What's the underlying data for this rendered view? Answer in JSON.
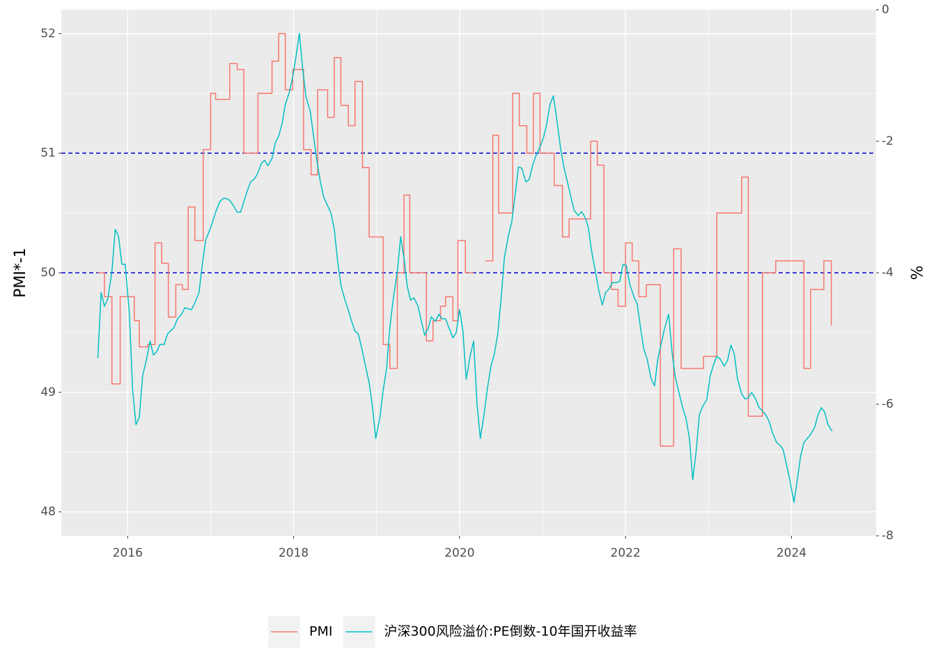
{
  "chart_data": {
    "type": "line",
    "y_label": "PMI*-1",
    "y2_label": "%",
    "xlim": [
      2015.2,
      2025.02
    ],
    "xticks": [
      2016,
      2018,
      2020,
      2022,
      2024
    ],
    "xminor": [
      2017,
      2019,
      2021,
      2023
    ],
    "ylim": [
      47.8,
      52.2
    ],
    "yticks": [
      48,
      49,
      50,
      51,
      52
    ],
    "yminor": [
      48.5,
      49.5,
      50.5,
      51.5
    ],
    "y2lim": [
      -8,
      0
    ],
    "y2ticks": [
      0,
      -2,
      -4,
      -6,
      -8
    ],
    "grid": true,
    "legend": "bottom",
    "reference_lines": [
      51,
      50
    ],
    "reference_color": "#0000cd",
    "series": [
      {
        "name": "PMI",
        "color": "#f8766d",
        "step": "hv",
        "x": [
          2015.64,
          2015.72,
          2015.81,
          2015.91,
          2016.08,
          2016.14,
          2016.24,
          2016.33,
          2016.41,
          2016.49,
          2016.58,
          2016.66,
          2016.73,
          2016.81,
          2016.91,
          2017.0,
          2017.06,
          2017.23,
          2017.32,
          2017.4,
          2017.57,
          2017.74,
          2017.82,
          2017.9,
          2017.99,
          2018.12,
          2018.21,
          2018.29,
          2018.41,
          2018.49,
          2018.57,
          2018.66,
          2018.74,
          2018.83,
          2018.91,
          2019.08,
          2019.16,
          2019.25,
          2019.33,
          2019.4,
          2019.6,
          2019.68,
          2019.77,
          2019.83,
          2019.92,
          2019.98,
          2020.07,
          2020.17,
          2020.31,
          2020.4,
          2020.47,
          2020.64,
          2020.72,
          2020.81,
          2020.89,
          2020.97,
          2021.14,
          2021.24,
          2021.32,
          2021.58,
          2021.66,
          2021.74,
          2021.83,
          2021.91,
          2022.0,
          2022.08,
          2022.16,
          2022.25,
          2022.42,
          2022.58,
          2022.67,
          2022.94,
          2023.1,
          2023.4,
          2023.48,
          2023.65,
          2023.81,
          2024.15,
          2024.23,
          2024.39,
          2024.48
        ],
        "values": [
          50.0,
          49.8,
          49.07,
          49.8,
          49.6,
          49.38,
          49.4,
          50.25,
          50.08,
          49.63,
          49.9,
          49.86,
          50.55,
          50.27,
          51.03,
          51.5,
          51.45,
          51.75,
          51.7,
          51.0,
          51.5,
          51.77,
          52.0,
          51.53,
          51.7,
          51.03,
          50.82,
          51.53,
          51.3,
          51.8,
          51.4,
          51.23,
          51.6,
          50.88,
          50.3,
          49.4,
          49.2,
          50.0,
          50.65,
          50.0,
          49.43,
          49.6,
          49.72,
          49.8,
          49.6,
          50.27,
          50.0,
          null,
          50.1,
          51.15,
          50.5,
          51.5,
          51.23,
          51.0,
          51.5,
          51.0,
          50.73,
          50.3,
          50.45,
          51.1,
          50.9,
          50.0,
          49.86,
          49.72,
          50.25,
          50.1,
          49.8,
          49.9,
          48.55,
          50.2,
          49.2,
          49.3,
          50.5,
          50.8,
          48.8,
          50.0,
          50.1,
          49.2,
          49.86,
          50.1,
          49.56
        ]
      },
      {
        "name": "沪深300风险溢价:PE倒数-10年国开收益率",
        "color": "#00bfc4",
        "axis": "y2",
        "x": [
          2015.64,
          2015.68,
          2015.72,
          2015.76,
          2015.81,
          2015.85,
          2015.89,
          2015.93,
          2015.97,
          2016.02,
          2016.06,
          2016.1,
          2016.14,
          2016.18,
          2016.23,
          2016.27,
          2016.31,
          2016.35,
          2016.39,
          2016.44,
          2016.48,
          2016.52,
          2016.56,
          2016.6,
          2016.65,
          2016.69,
          2016.73,
          2016.77,
          2016.81,
          2016.86,
          2016.9,
          2016.94,
          2016.98,
          2017.02,
          2017.06,
          2017.11,
          2017.15,
          2017.19,
          2017.23,
          2017.27,
          2017.32,
          2017.36,
          2017.4,
          2017.44,
          2017.48,
          2017.53,
          2017.57,
          2017.61,
          2017.65,
          2017.69,
          2017.74,
          2017.78,
          2017.82,
          2017.86,
          2017.9,
          2017.95,
          2017.99,
          2018.03,
          2018.07,
          2018.11,
          2018.15,
          2018.2,
          2018.24,
          2018.28,
          2018.32,
          2018.36,
          2018.41,
          2018.45,
          2018.49,
          2018.53,
          2018.57,
          2018.62,
          2018.66,
          2018.7,
          2018.74,
          2018.78,
          2018.83,
          2018.87,
          2018.91,
          2018.95,
          2018.99,
          2019.04,
          2019.08,
          2019.12,
          2019.16,
          2019.2,
          2019.25,
          2019.29,
          2019.33,
          2019.37,
          2019.41,
          2019.45,
          2019.5,
          2019.54,
          2019.58,
          2019.62,
          2019.66,
          2019.71,
          2019.75,
          2019.79,
          2019.83,
          2019.87,
          2019.92,
          2019.96,
          2020.0,
          2020.04,
          2020.08,
          2020.13,
          2020.17,
          2020.21,
          2020.25,
          2020.29,
          2020.34,
          2020.38,
          2020.42,
          2020.46,
          2020.5,
          2020.54,
          2020.59,
          2020.63,
          2020.67,
          2020.71,
          2020.75,
          2020.8,
          2020.84,
          2020.88,
          2020.92,
          2020.96,
          2021.01,
          2021.05,
          2021.09,
          2021.13,
          2021.17,
          2021.22,
          2021.26,
          2021.3,
          2021.34,
          2021.38,
          2021.43,
          2021.47,
          2021.51,
          2021.55,
          2021.59,
          2021.64,
          2021.68,
          2021.72,
          2021.76,
          2021.8,
          2021.84,
          2021.89,
          2021.93,
          2021.97,
          2022.01,
          2022.05,
          2022.1,
          2022.14,
          2022.18,
          2022.22,
          2022.26,
          2022.31,
          2022.35,
          2022.39,
          2022.43,
          2022.47,
          2022.52,
          2022.56,
          2022.6,
          2022.64,
          2022.68,
          2022.73,
          2022.77,
          2022.81,
          2022.85,
          2022.89,
          2022.93,
          2022.98,
          2023.02,
          2023.06,
          2023.1,
          2023.14,
          2023.19,
          2023.23,
          2023.27,
          2023.31,
          2023.35,
          2023.4,
          2023.44,
          2023.48,
          2023.52,
          2023.56,
          2023.61,
          2023.65,
          2023.69,
          2023.73,
          2023.77,
          2023.82,
          2023.86,
          2023.9,
          2023.94,
          2023.98,
          2024.03,
          2024.07,
          2024.11,
          2024.15,
          2024.19,
          2024.23,
          2024.28,
          2024.32,
          2024.36,
          2024.4,
          2024.44,
          2024.49
        ],
        "values": [
          -5.3,
          -4.3,
          -4.51,
          -4.4,
          -3.98,
          -3.34,
          -3.45,
          -3.87,
          -3.87,
          -4.61,
          -5.78,
          -6.31,
          -6.2,
          -5.57,
          -5.3,
          -5.04,
          -5.25,
          -5.2,
          -5.09,
          -5.09,
          -4.93,
          -4.88,
          -4.83,
          -4.7,
          -4.63,
          -4.53,
          -4.55,
          -4.56,
          -4.46,
          -4.3,
          -3.87,
          -3.5,
          -3.38,
          -3.24,
          -3.08,
          -2.92,
          -2.87,
          -2.87,
          -2.9,
          -2.97,
          -3.08,
          -3.08,
          -2.92,
          -2.76,
          -2.62,
          -2.57,
          -2.48,
          -2.34,
          -2.29,
          -2.37,
          -2.26,
          -2.02,
          -1.92,
          -1.74,
          -1.44,
          -1.25,
          -1.02,
          -0.7,
          -0.36,
          -0.91,
          -1.33,
          -1.54,
          -1.92,
          -2.29,
          -2.6,
          -2.84,
          -2.98,
          -3.09,
          -3.34,
          -3.82,
          -4.19,
          -4.42,
          -4.57,
          -4.74,
          -4.89,
          -4.93,
          -5.2,
          -5.44,
          -5.67,
          -6.04,
          -6.52,
          -6.2,
          -5.78,
          -5.46,
          -4.83,
          -4.4,
          -3.98,
          -3.45,
          -3.77,
          -4.21,
          -4.42,
          -4.38,
          -4.51,
          -4.74,
          -4.95,
          -4.85,
          -4.67,
          -4.74,
          -4.63,
          -4.7,
          -4.7,
          -4.83,
          -4.99,
          -4.91,
          -4.56,
          -4.88,
          -5.62,
          -5.25,
          -5.04,
          -5.99,
          -6.52,
          -6.2,
          -5.72,
          -5.41,
          -5.23,
          -4.93,
          -4.4,
          -3.77,
          -3.43,
          -3.22,
          -2.81,
          -2.39,
          -2.41,
          -2.62,
          -2.58,
          -2.37,
          -2.22,
          -2.12,
          -1.95,
          -1.74,
          -1.44,
          -1.31,
          -1.65,
          -2.13,
          -2.41,
          -2.62,
          -2.84,
          -3.05,
          -3.13,
          -3.07,
          -3.15,
          -3.3,
          -3.66,
          -4.0,
          -4.28,
          -4.49,
          -4.3,
          -4.25,
          -4.15,
          -4.15,
          -4.13,
          -3.87,
          -3.89,
          -4.17,
          -4.36,
          -4.47,
          -4.83,
          -5.16,
          -5.31,
          -5.62,
          -5.72,
          -5.3,
          -5.08,
          -4.85,
          -4.63,
          -5.2,
          -5.59,
          -5.8,
          -6.01,
          -6.22,
          -6.52,
          -7.15,
          -6.73,
          -6.16,
          -6.03,
          -5.93,
          -5.57,
          -5.4,
          -5.27,
          -5.31,
          -5.42,
          -5.33,
          -5.1,
          -5.23,
          -5.62,
          -5.84,
          -5.92,
          -5.9,
          -5.82,
          -5.9,
          -6.05,
          -6.1,
          -6.16,
          -6.26,
          -6.43,
          -6.58,
          -6.62,
          -6.69,
          -6.92,
          -7.15,
          -7.49,
          -7.15,
          -6.79,
          -6.58,
          -6.52,
          -6.46,
          -6.35,
          -6.16,
          -6.05,
          -6.12,
          -6.31,
          -6.41
        ]
      }
    ]
  }
}
